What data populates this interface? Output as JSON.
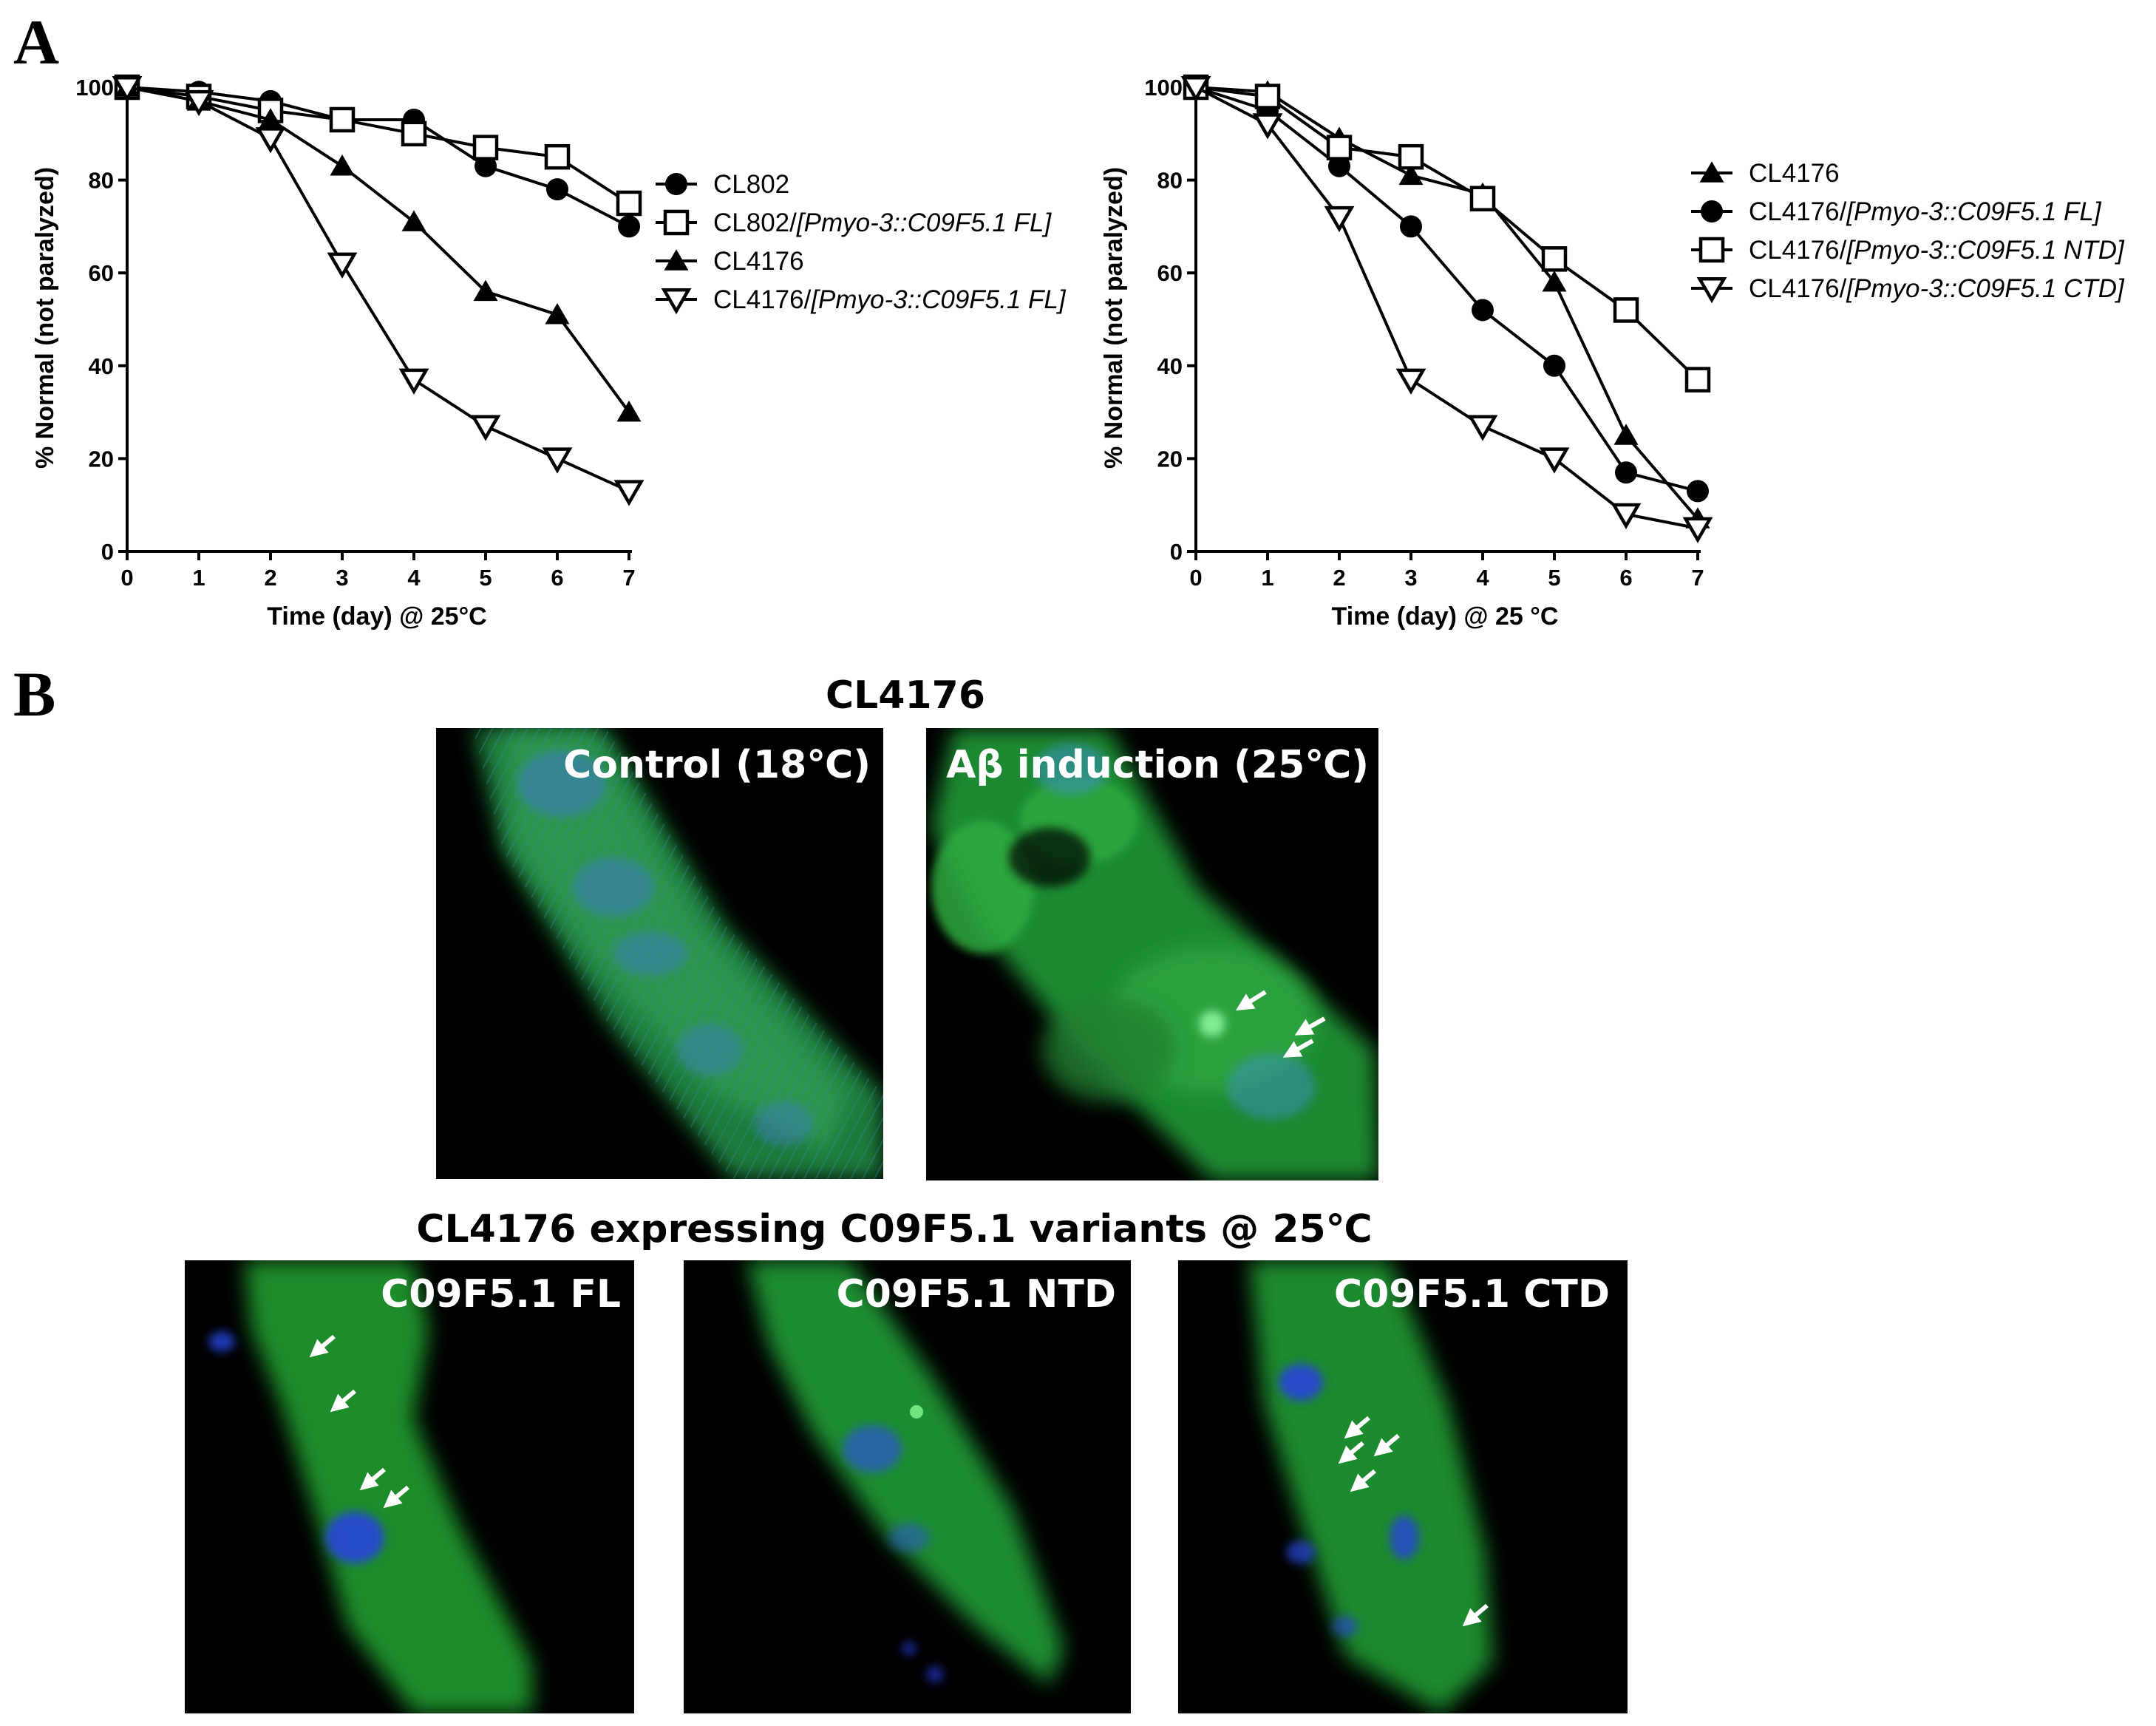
{
  "panel_letters": {
    "a": "A",
    "b": "B"
  },
  "chart_data": [
    {
      "type": "line",
      "xlabel": "Time (day) @ 25°C",
      "ylabel": "% Normal (not paralyzed)",
      "x": [
        0,
        1,
        2,
        3,
        4,
        5,
        6,
        7
      ],
      "xlim": [
        0,
        7
      ],
      "ylim": [
        0,
        100
      ],
      "yticks": [
        0,
        20,
        40,
        60,
        80,
        100
      ],
      "legend_position": "right",
      "series": [
        {
          "name": "CL802",
          "name_italic": "",
          "marker": "filled-circle",
          "values": [
            100,
            99,
            97,
            93,
            93,
            83,
            78,
            70
          ]
        },
        {
          "name": "CL802/",
          "name_italic": "[Pmyo-3::C09F5.1 FL]",
          "marker": "open-square",
          "values": [
            100,
            98,
            95,
            93,
            90,
            87,
            85,
            75
          ]
        },
        {
          "name": "CL4176",
          "name_italic": "",
          "marker": "filled-triangle",
          "values": [
            100,
            97,
            93,
            83,
            71,
            56,
            51,
            30
          ]
        },
        {
          "name": "CL4176/",
          "name_italic": "[Pmyo-3::C09F5.1 FL]",
          "marker": "open-triangle-down",
          "values": [
            100,
            97,
            89,
            62,
            37,
            27,
            20,
            13
          ]
        }
      ]
    },
    {
      "type": "line",
      "xlabel": "Time (day) @ 25 °C",
      "ylabel": "% Normal (not paralyzed)",
      "x": [
        0,
        1,
        2,
        3,
        4,
        5,
        6,
        7
      ],
      "xlim": [
        0,
        7
      ],
      "ylim": [
        0,
        100
      ],
      "yticks": [
        0,
        20,
        40,
        60,
        80,
        100
      ],
      "legend_position": "right",
      "series": [
        {
          "name": "CL4176",
          "name_italic": "",
          "marker": "filled-triangle",
          "values": [
            100,
            99,
            89,
            81,
            77,
            58,
            25,
            7
          ]
        },
        {
          "name": "CL4176/",
          "name_italic": "[Pmyo-3::C09F5.1 FL]",
          "marker": "filled-circle",
          "values": [
            100,
            95,
            83,
            70,
            52,
            40,
            17,
            13
          ]
        },
        {
          "name": "CL4176/",
          "name_italic": "[Pmyo-3::C09F5.1 NTD]",
          "marker": "open-square",
          "values": [
            100,
            98,
            87,
            85,
            76,
            63,
            52,
            37
          ]
        },
        {
          "name": "CL4176/",
          "name_italic": "[Pmyo-3::C09F5.1 CTD]",
          "marker": "open-triangle-down",
          "values": [
            100,
            92,
            72,
            37,
            27,
            20,
            8,
            5
          ]
        }
      ]
    }
  ],
  "panel_b": {
    "top_title": "CL4176",
    "bottom_title": "CL4176 expressing C09F5.1 variants @ 25℃",
    "images": [
      {
        "label": "Control (18℃)",
        "arrows": 0
      },
      {
        "label": "Aβ induction (25℃)",
        "arrows": 3
      },
      {
        "label": "C09F5.1 FL",
        "arrows": 4
      },
      {
        "label": "C09F5.1 NTD",
        "arrows": 0
      },
      {
        "label": "C09F5.1 CTD",
        "arrows": 5
      }
    ]
  }
}
